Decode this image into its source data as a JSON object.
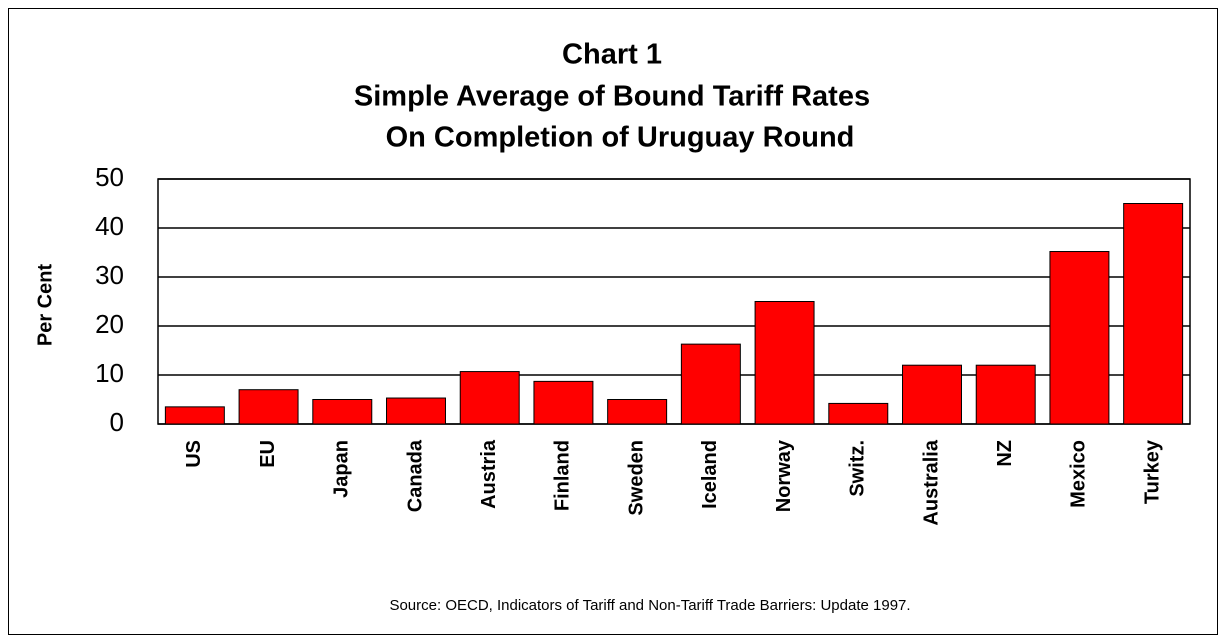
{
  "chart_data": {
    "type": "bar",
    "title": [
      "Chart 1",
      "Simple Average of Bound Tariff Rates",
      "On Completion of Uruguay Round"
    ],
    "y_label": "Per Cent",
    "source": "Source: OECD, Indicators of Tariff and Non-Tariff Trade Barriers: Update 1997.",
    "categories": [
      "US",
      "EU",
      "Japan",
      "Canada",
      "Austria",
      "Finland",
      "Sweden",
      "Iceland",
      "Norway",
      "Switz.",
      "Australia",
      "NZ",
      "Mexico",
      "Turkey"
    ],
    "values": [
      3.5,
      7,
      5,
      5.3,
      10.7,
      8.7,
      5,
      16.3,
      25,
      4.2,
      12,
      12,
      35.2,
      45
    ],
    "color": "#ff0000",
    "ylim": [
      0,
      50
    ],
    "yticks": [
      0,
      10,
      20,
      30,
      40,
      50
    ],
    "grid": true
  }
}
